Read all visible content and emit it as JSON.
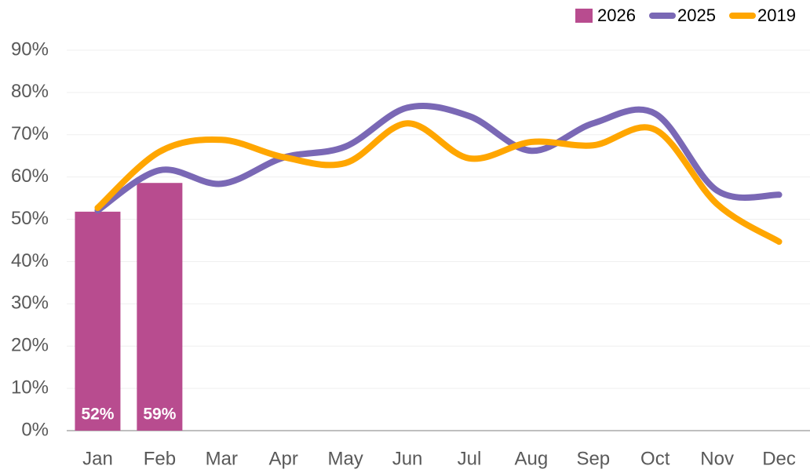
{
  "chart_data": {
    "type": "combo",
    "categories": [
      "Jan",
      "Feb",
      "Mar",
      "Apr",
      "May",
      "Jun",
      "Jul",
      "Aug",
      "Sep",
      "Oct",
      "Nov",
      "Dec"
    ],
    "series": [
      {
        "name": "2026",
        "type": "bar",
        "color": "#b84c8f",
        "values": [
          51.8,
          58.6,
          null,
          null,
          null,
          null,
          null,
          null,
          null,
          null,
          null,
          null
        ],
        "value_labels": [
          "52%",
          "59%",
          null,
          null,
          null,
          null,
          null,
          null,
          null,
          null,
          null,
          null
        ]
      },
      {
        "name": "2025",
        "type": "line",
        "color": "#7a68b5",
        "values": [
          52.1,
          61.6,
          58.4,
          64.6,
          67.2,
          76.4,
          74.4,
          66.2,
          72.7,
          75.0,
          56.8,
          55.8
        ]
      },
      {
        "name": "2019",
        "type": "line",
        "color": "#ffa600",
        "values": [
          52.7,
          66.0,
          68.8,
          64.7,
          63.3,
          72.7,
          64.4,
          68.3,
          67.5,
          71.2,
          53.6,
          44.7
        ]
      }
    ],
    "ylim": [
      0,
      90
    ],
    "yticks": [
      {
        "value": 0,
        "label": "0%"
      },
      {
        "value": 10,
        "label": "10%"
      },
      {
        "value": 20,
        "label": "20%"
      },
      {
        "value": 30,
        "label": "30%"
      },
      {
        "value": 40,
        "label": "40%"
      },
      {
        "value": 50,
        "label": "50%"
      },
      {
        "value": 60,
        "label": "60%"
      },
      {
        "value": 70,
        "label": "70%"
      },
      {
        "value": 80,
        "label": "80%"
      },
      {
        "value": 90,
        "label": "90%"
      }
    ],
    "grid": true,
    "legend": "top-right"
  }
}
